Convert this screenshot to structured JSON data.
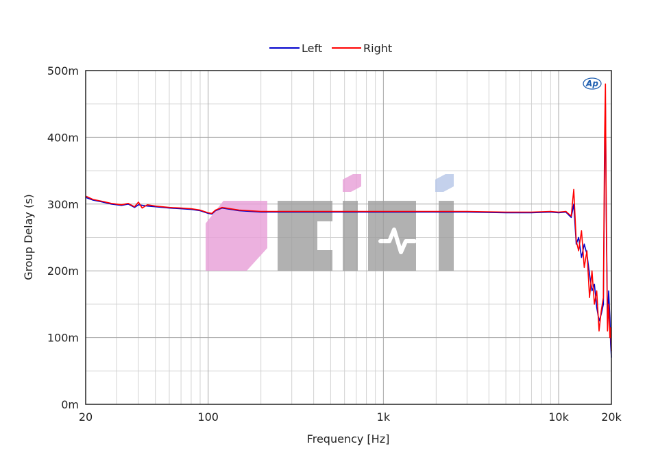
{
  "chart_data": {
    "type": "line",
    "xlabel": "Frequency [Hz]",
    "ylabel": "Group Delay (s)",
    "x_scale": "log",
    "xlim": [
      20,
      20000
    ],
    "ylim": [
      0,
      0.5
    ],
    "x_ticks": [
      {
        "value": 20,
        "label": "20"
      },
      {
        "value": 100,
        "label": "100"
      },
      {
        "value": 1000,
        "label": "1k"
      },
      {
        "value": 10000,
        "label": "10k"
      },
      {
        "value": 20000,
        "label": "20k"
      }
    ],
    "y_ticks": [
      {
        "value": 0,
        "label": "0m"
      },
      {
        "value": 0.1,
        "label": "100m"
      },
      {
        "value": 0.2,
        "label": "200m"
      },
      {
        "value": 0.3,
        "label": "300m"
      },
      {
        "value": 0.4,
        "label": "400m"
      },
      {
        "value": 0.5,
        "label": "500m"
      }
    ],
    "grid": true,
    "legend_position": "top-center",
    "series": [
      {
        "name": "Left",
        "color": "#0000cc",
        "points": [
          [
            20,
            0.31
          ],
          [
            22,
            0.306
          ],
          [
            25,
            0.303
          ],
          [
            28,
            0.3
          ],
          [
            32,
            0.298
          ],
          [
            35,
            0.3
          ],
          [
            38,
            0.295
          ],
          [
            40,
            0.299
          ],
          [
            45,
            0.297
          ],
          [
            50,
            0.296
          ],
          [
            60,
            0.294
          ],
          [
            70,
            0.293
          ],
          [
            80,
            0.292
          ],
          [
            90,
            0.29
          ],
          [
            100,
            0.286
          ],
          [
            105,
            0.285
          ],
          [
            110,
            0.29
          ],
          [
            120,
            0.294
          ],
          [
            150,
            0.29
          ],
          [
            200,
            0.288
          ],
          [
            300,
            0.288
          ],
          [
            500,
            0.288
          ],
          [
            1000,
            0.288
          ],
          [
            2000,
            0.288
          ],
          [
            3000,
            0.288
          ],
          [
            5000,
            0.287
          ],
          [
            7000,
            0.287
          ],
          [
            9000,
            0.288
          ],
          [
            10000,
            0.287
          ],
          [
            11000,
            0.288
          ],
          [
            11800,
            0.28
          ],
          [
            12200,
            0.3
          ],
          [
            12600,
            0.24
          ],
          [
            13000,
            0.25
          ],
          [
            13500,
            0.22
          ],
          [
            14000,
            0.24
          ],
          [
            14500,
            0.225
          ],
          [
            15000,
            0.195
          ],
          [
            15500,
            0.17
          ],
          [
            16000,
            0.18
          ],
          [
            16500,
            0.145
          ],
          [
            17000,
            0.125
          ],
          [
            17500,
            0.135
          ],
          [
            18000,
            0.15
          ],
          [
            18300,
            0.35
          ],
          [
            18500,
            0.45
          ],
          [
            18700,
            0.3
          ],
          [
            19000,
            0.12
          ],
          [
            19300,
            0.17
          ],
          [
            19600,
            0.13
          ],
          [
            19800,
            0.09
          ],
          [
            20000,
            0.07
          ]
        ]
      },
      {
        "name": "Right",
        "color": "#ff0000",
        "points": [
          [
            20,
            0.312
          ],
          [
            22,
            0.307
          ],
          [
            25,
            0.304
          ],
          [
            28,
            0.301
          ],
          [
            32,
            0.299
          ],
          [
            35,
            0.301
          ],
          [
            38,
            0.296
          ],
          [
            40,
            0.303
          ],
          [
            42,
            0.294
          ],
          [
            45,
            0.299
          ],
          [
            50,
            0.297
          ],
          [
            60,
            0.295
          ],
          [
            70,
            0.294
          ],
          [
            80,
            0.293
          ],
          [
            90,
            0.291
          ],
          [
            100,
            0.287
          ],
          [
            105,
            0.286
          ],
          [
            110,
            0.291
          ],
          [
            120,
            0.295
          ],
          [
            150,
            0.291
          ],
          [
            200,
            0.289
          ],
          [
            300,
            0.289
          ],
          [
            500,
            0.289
          ],
          [
            1000,
            0.289
          ],
          [
            2000,
            0.289
          ],
          [
            3000,
            0.289
          ],
          [
            5000,
            0.288
          ],
          [
            7000,
            0.288
          ],
          [
            9000,
            0.289
          ],
          [
            10000,
            0.288
          ],
          [
            11000,
            0.289
          ],
          [
            11800,
            0.282
          ],
          [
            12200,
            0.322
          ],
          [
            12600,
            0.245
          ],
          [
            13000,
            0.23
          ],
          [
            13500,
            0.26
          ],
          [
            14000,
            0.205
          ],
          [
            14500,
            0.23
          ],
          [
            15000,
            0.16
          ],
          [
            15500,
            0.2
          ],
          [
            16000,
            0.15
          ],
          [
            16500,
            0.17
          ],
          [
            17000,
            0.11
          ],
          [
            17500,
            0.14
          ],
          [
            18000,
            0.16
          ],
          [
            18300,
            0.4
          ],
          [
            18500,
            0.48
          ],
          [
            18700,
            0.28
          ],
          [
            19000,
            0.11
          ],
          [
            19300,
            0.15
          ],
          [
            19600,
            0.1
          ],
          [
            19800,
            0.115
          ],
          [
            20000,
            0.08
          ]
        ]
      }
    ]
  },
  "colors": {
    "frame": "#222222",
    "grid_major": "#a8a8a8",
    "grid_minor": "#d2d2d2",
    "watermark_gray": "#a0a0a0",
    "watermark_pink": "#e8a0d8",
    "watermark_blue": "#b8c8e8"
  },
  "badge": {
    "text": "Ap"
  }
}
